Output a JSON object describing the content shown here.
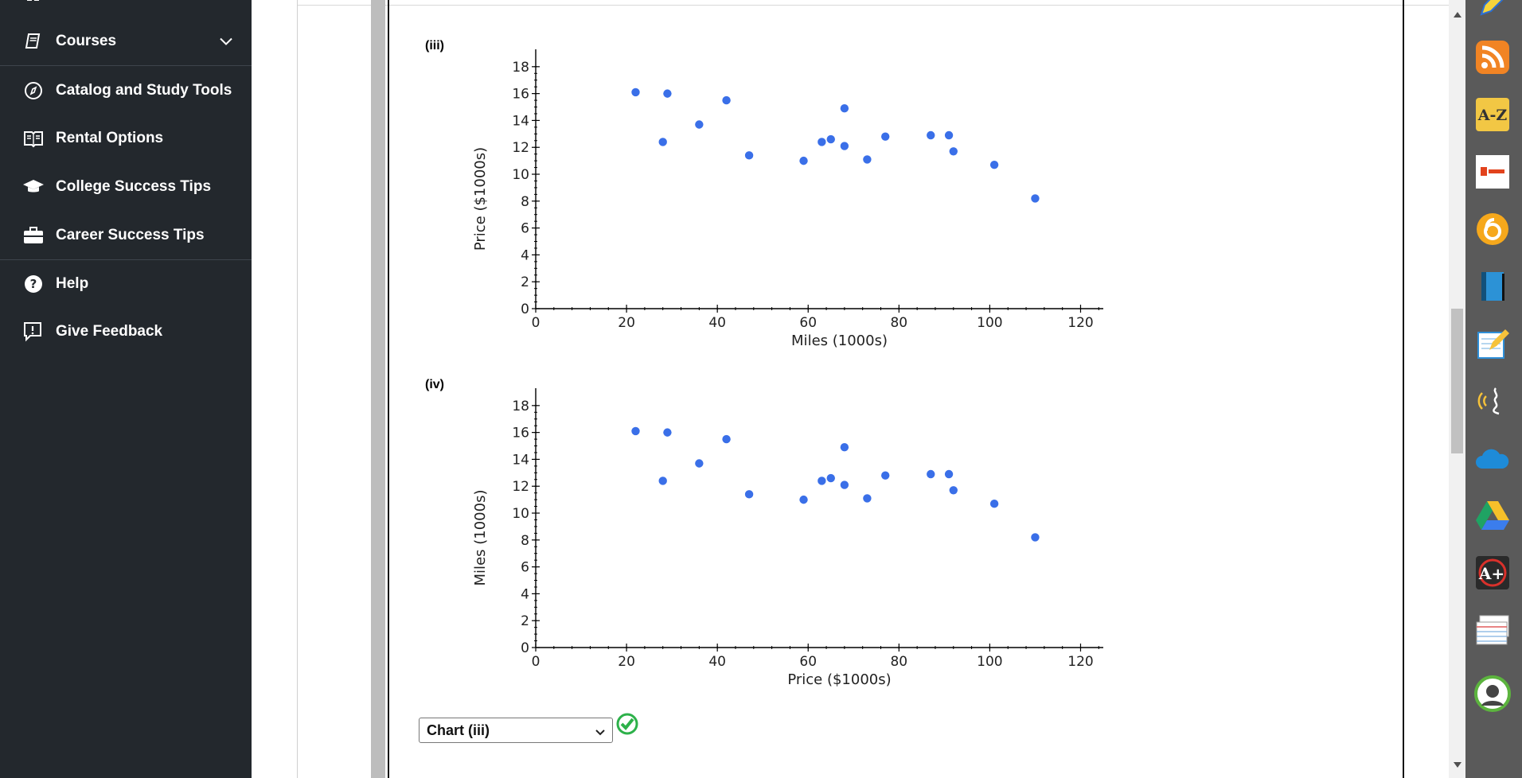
{
  "sidebar": {
    "items": [
      {
        "label": "Courses",
        "icon": "book-icon"
      },
      {
        "label": "Catalog and Study Tools",
        "icon": "compass-icon"
      },
      {
        "label": "Rental Options",
        "icon": "open-book-icon"
      },
      {
        "label": "College Success Tips",
        "icon": "graduation-cap-icon"
      },
      {
        "label": "Career Success Tips",
        "icon": "briefcase-icon"
      },
      {
        "label": "Help",
        "icon": "help-icon"
      },
      {
        "label": "Give Feedback",
        "icon": "feedback-icon"
      }
    ]
  },
  "charts": {
    "iii_label": "(iii)",
    "iv_label": "(iv)"
  },
  "chart_data": [
    {
      "type": "scatter",
      "id": "iii",
      "xlabel": "Miles (1000s)",
      "ylabel": "Price ($1000s)",
      "xlim": [
        0,
        125
      ],
      "ylim": [
        0,
        18.7
      ],
      "xticks": [
        0,
        20,
        40,
        60,
        80,
        100,
        120
      ],
      "yticks": [
        0,
        2,
        4,
        6,
        8,
        10,
        12,
        14,
        16,
        18
      ],
      "points": [
        [
          22,
          16.1
        ],
        [
          28,
          12.4
        ],
        [
          29,
          16
        ],
        [
          36,
          13.7
        ],
        [
          42,
          15.5
        ],
        [
          47,
          11.4
        ],
        [
          59,
          11
        ],
        [
          63,
          12.4
        ],
        [
          65,
          12.6
        ],
        [
          68,
          14.9
        ],
        [
          68,
          12.1
        ],
        [
          73,
          11.1
        ],
        [
          77,
          12.8
        ],
        [
          87,
          12.9
        ],
        [
          91,
          12.9
        ],
        [
          92,
          11.7
        ],
        [
          101,
          10.7
        ],
        [
          110,
          8.2
        ]
      ],
      "color": "#3a6fe8"
    },
    {
      "type": "scatter",
      "id": "iv",
      "xlabel": "Price ($1000s)",
      "ylabel": "Miles (1000s)",
      "xlim": [
        0,
        125
      ],
      "ylim": [
        0,
        18.7
      ],
      "xticks": [
        0,
        20,
        40,
        60,
        80,
        100,
        120
      ],
      "yticks": [
        0,
        2,
        4,
        6,
        8,
        10,
        12,
        14,
        16,
        18
      ],
      "points": [
        [
          22,
          16.1
        ],
        [
          28,
          12.4
        ],
        [
          29,
          16
        ],
        [
          36,
          13.7
        ],
        [
          42,
          15.5
        ],
        [
          47,
          11.4
        ],
        [
          59,
          11
        ],
        [
          63,
          12.4
        ],
        [
          65,
          12.6
        ],
        [
          68,
          14.9
        ],
        [
          68,
          12.1
        ],
        [
          73,
          11.1
        ],
        [
          77,
          12.8
        ],
        [
          87,
          12.9
        ],
        [
          91,
          12.9
        ],
        [
          92,
          11.7
        ],
        [
          101,
          10.7
        ],
        [
          110,
          8.2
        ]
      ],
      "color": "#3a6fe8"
    }
  ],
  "answer": {
    "selected": "Chart (iii)"
  },
  "dock": {
    "icons": [
      "pencil-icon",
      "rss-icon",
      "a-z-icon",
      "office-icon",
      "circle-6-icon",
      "blue-book-icon",
      "notepad-pencil-icon",
      "voice-icon",
      "cloud-icon",
      "drive-icon",
      "a-plus-icon",
      "notecards-icon",
      "avatar-icon"
    ]
  },
  "colors": {
    "sidebar_bg": "#23282d",
    "point": "#3a6fe8",
    "check": "#2db14a"
  }
}
